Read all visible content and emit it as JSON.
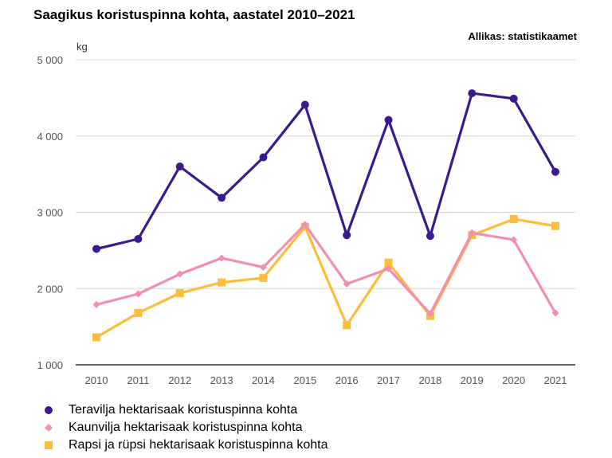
{
  "chart_data": {
    "type": "line",
    "title": "Saagikus koristuspinna kohta, aastatel 2010–2021",
    "source": "Allikas: statistikaamet",
    "ylabel": "kg",
    "xlabel": "",
    "ylim": [
      1000,
      5000
    ],
    "yticks": [
      1000,
      2000,
      3000,
      4000,
      5000
    ],
    "ytick_labels": [
      "1 000",
      "2 000",
      "3 000",
      "4 000",
      "5 000"
    ],
    "categories": [
      "2010",
      "2011",
      "2012",
      "2013",
      "2014",
      "2015",
      "2016",
      "2017",
      "2018",
      "2019",
      "2020",
      "2021"
    ],
    "grid": true,
    "legend_position": "bottom-left",
    "series": [
      {
        "name": "Teravilja hektarisaak koristuspinna kohta",
        "color": "#3b1a8f",
        "marker": "circle",
        "values": [
          2520,
          2650,
          3600,
          3190,
          3720,
          4410,
          2700,
          4210,
          2690,
          4560,
          4490,
          3530
        ]
      },
      {
        "name": "Kaunvilja hektarisaak koristuspinna kohta",
        "color": "#f28fb0",
        "marker": "diamond",
        "values": [
          1790,
          1930,
          2190,
          2400,
          2280,
          2840,
          2060,
          2260,
          1670,
          2730,
          2640,
          1680
        ]
      },
      {
        "name": "Rapsi ja rüpsi hektarisaak koristuspinna kohta",
        "color": "#fbbd3b",
        "marker": "square",
        "values": [
          1360,
          1680,
          1940,
          2080,
          2140,
          2810,
          1520,
          2340,
          1640,
          2700,
          2910,
          2820
        ]
      }
    ]
  }
}
